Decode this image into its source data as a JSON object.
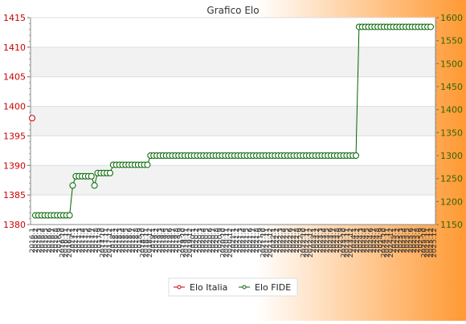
{
  "chart_data": {
    "type": "line",
    "title": "Grafico Elo",
    "colors": {
      "elo_italia": "#cc0000",
      "elo_fide": "#006400",
      "background_left": "#ffffff",
      "background_right": "#ff9933",
      "band": "#f2f2f2",
      "axis_left_text": "#cc0000",
      "axis_right_text": "#336600"
    },
    "legend": {
      "placement": "bottom-center"
    },
    "grid": true,
    "y_left": {
      "label": "",
      "ylim": [
        1380,
        1415
      ],
      "ticks": [
        1380,
        1385,
        1390,
        1395,
        1400,
        1405,
        1410,
        1415
      ]
    },
    "y_right": {
      "label": "",
      "ylim": [
        1150,
        1600
      ],
      "ticks": [
        1150,
        1200,
        1250,
        1300,
        1350,
        1400,
        1450,
        1500,
        1550,
        1600
      ]
    },
    "series": [
      {
        "name": "Elo Italia",
        "axis": "left",
        "points": [
          {
            "i": 0,
            "y": 1398
          }
        ]
      },
      {
        "name": "Elo FIDE",
        "axis": "right",
        "y": [
          1170,
          1170,
          1170,
          1170,
          1170,
          1170,
          1170,
          1170,
          1170,
          1170,
          1170,
          1170,
          1235,
          1255,
          1255,
          1255,
          1255,
          1255,
          1255,
          1235,
          1262,
          1262,
          1262,
          1262,
          1262,
          1280,
          1280,
          1280,
          1280,
          1280,
          1280,
          1280,
          1280,
          1280,
          1280,
          1280,
          1280,
          1300,
          1300,
          1300,
          1300,
          1300,
          1300,
          1300,
          1300,
          1300,
          1300,
          1300,
          1300,
          1300,
          1300,
          1300,
          1300,
          1300,
          1300,
          1300,
          1300,
          1300,
          1300,
          1300,
          1300,
          1300,
          1300,
          1300,
          1300,
          1300,
          1300,
          1300,
          1300,
          1300,
          1300,
          1300,
          1300,
          1300,
          1300,
          1300,
          1300,
          1300,
          1300,
          1300,
          1300,
          1300,
          1300,
          1300,
          1300,
          1300,
          1300,
          1300,
          1300,
          1300,
          1300,
          1300,
          1300,
          1300,
          1300,
          1300,
          1300,
          1300,
          1300,
          1300,
          1300,
          1300,
          1300,
          1300,
          1580,
          1580,
          1580,
          1580,
          1580,
          1580,
          1580,
          1580,
          1580,
          1580,
          1580,
          1580,
          1580,
          1580,
          1580,
          1580,
          1580,
          1580,
          1580,
          1580,
          1580,
          1580,
          1580,
          1580
        ]
      }
    ],
    "x_tick_labels": [
      "2016.1",
      "2016.2",
      "2016.3",
      "2016.4",
      "2016.5",
      "2016.6",
      "2016.7",
      "2016.8",
      "2016.9",
      "2016.10",
      "2016.11",
      "2016.12",
      "2017.1",
      "2017.2",
      "2017.3",
      "2017.4",
      "2017.5",
      "2017.6",
      "2017.7",
      "2017.8",
      "2017.9",
      "2017.10",
      "2017.11",
      "2017.12",
      "2018.1",
      "2018.2",
      "2018.3",
      "2018.4",
      "2018.5",
      "2018.6",
      "2018.7",
      "2018.8",
      "2018.9",
      "2018.10",
      "2018.11",
      "2018.12",
      "2019.1",
      "2019.2",
      "2019.3",
      "2019.4",
      "2019.5",
      "2019.6",
      "2019.7",
      "2019.8",
      "2019.9",
      "2019.10",
      "2019.11",
      "2019.12",
      "2020.1",
      "2020.2",
      "2020.3",
      "2020.4",
      "2020.5",
      "2020.6",
      "2020.7",
      "2020.8",
      "2020.9",
      "2020.10",
      "2020.11",
      "2020.12",
      "2021.1",
      "2021.2",
      "2021.3",
      "2021.4",
      "2021.5",
      "2021.6",
      "2021.7",
      "2021.8",
      "2021.9",
      "2021.10",
      "2021.11",
      "2021.12",
      "2022.1",
      "2022.2",
      "2022.3",
      "2022.4",
      "2022.5",
      "2022.6",
      "2022.7",
      "2022.8",
      "2022.9",
      "2022.10",
      "2022.11",
      "2022.12",
      "2023.1",
      "2023.2",
      "2023.3",
      "2023.4",
      "2023.5",
      "2023.6",
      "2023.7",
      "2023.8",
      "2023.9",
      "2023.10",
      "2023.11",
      "2023.12",
      "2024.1",
      "2024.2",
      "2024.3",
      "2024.4",
      "2024.5",
      "2024.6",
      "2024.7",
      "2024.8",
      "2024.9",
      "2024.10",
      "2024.11",
      "2024.12",
      "2025.1",
      "2025.2",
      "2025.3",
      "2025.4",
      "2025.5",
      "2025.6",
      "2025.7",
      "2025.8",
      "2025.9",
      "2025.10",
      "2025.11",
      "2025.12",
      "2025.12"
    ]
  }
}
